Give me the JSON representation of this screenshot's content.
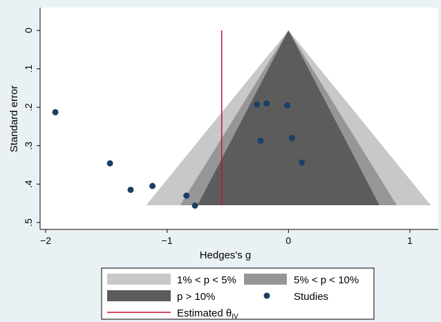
{
  "chart_data": {
    "type": "scatter",
    "title": "",
    "xlabel": "Hedges's g",
    "ylabel": "Standard error",
    "xlim": [
      -2.05,
      1.22
    ],
    "ylim": [
      0,
      0.5
    ],
    "y_reversed": true,
    "x_ticks": [
      -2,
      -1,
      0,
      1
    ],
    "x_tick_labels": [
      "−2",
      "−1",
      "0",
      "1"
    ],
    "y_ticks": [
      0,
      0.1,
      0.2,
      0.3,
      0.4,
      0.5
    ],
    "y_tick_labels": [
      "0",
      ".1",
      ".2",
      ".3",
      ".4",
      ".5"
    ],
    "grid": false,
    "funnel": {
      "apex_x": 0,
      "max_se": 0.455,
      "regions": [
        {
          "name": "1% < p < 5%",
          "z": 2.576,
          "color": "#c8c8c8"
        },
        {
          "name": "5% < p < 10%",
          "z": 1.96,
          "color": "#969696"
        },
        {
          "name": "p > 10%",
          "z": 1.645,
          "color": "#5c5c5c"
        }
      ]
    },
    "estimate": {
      "name": "Estimated θIV",
      "x": -0.55,
      "color": "#c8102e"
    },
    "series": [
      {
        "name": "Studies",
        "color": "#1b3f66",
        "points": [
          {
            "x": -1.92,
            "y": 0.213
          },
          {
            "x": -1.47,
            "y": 0.346
          },
          {
            "x": -1.3,
            "y": 0.415
          },
          {
            "x": -1.12,
            "y": 0.405
          },
          {
            "x": -0.84,
            "y": 0.43
          },
          {
            "x": -0.77,
            "y": 0.456
          },
          {
            "x": -0.26,
            "y": 0.193
          },
          {
            "x": -0.18,
            "y": 0.19
          },
          {
            "x": -0.23,
            "y": 0.287
          },
          {
            "x": -0.01,
            "y": 0.195
          },
          {
            "x": 0.03,
            "y": 0.28
          },
          {
            "x": 0.11,
            "y": 0.344
          }
        ]
      }
    ],
    "legend": {
      "position": "bottom",
      "entries": [
        {
          "label": "1% < p < 5%"
        },
        {
          "label": "5% < p < 10%"
        },
        {
          "label": "p > 10%"
        },
        {
          "label": "Studies"
        },
        {
          "label": "Estimated θ",
          "sub": "IV"
        }
      ]
    },
    "colors": {
      "background": "#eaf1f4",
      "plot_background": "#ffffff"
    }
  }
}
